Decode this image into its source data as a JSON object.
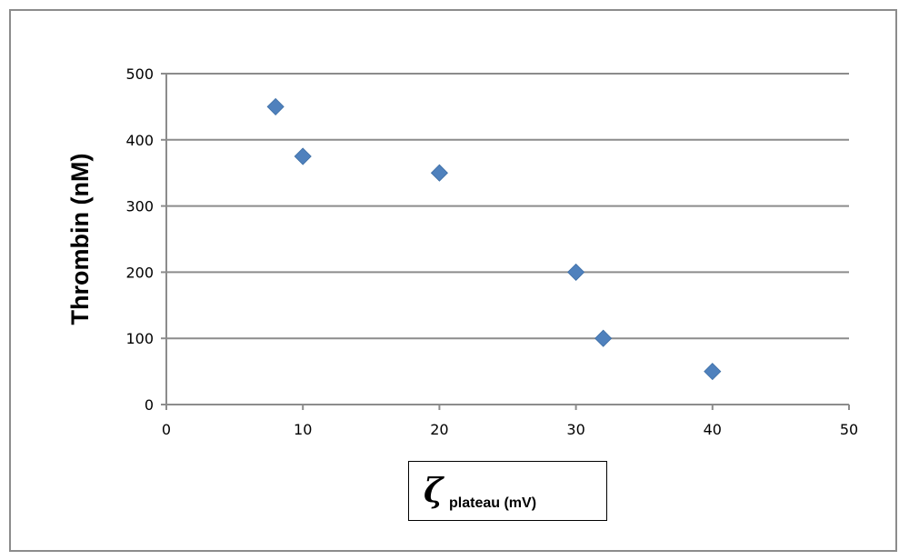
{
  "chart_data": {
    "type": "scatter",
    "title": "",
    "ylabel": "Thrombin (nM)",
    "xlabel_symbol": "ζ",
    "xlabel_sub": "plateau (mV)",
    "xlim": [
      0,
      50
    ],
    "ylim": [
      0,
      500
    ],
    "x_ticks": [
      "0",
      "10",
      "20",
      "30",
      "40",
      "50"
    ],
    "y_ticks": [
      "0",
      "100",
      "200",
      "300",
      "400",
      "500"
    ],
    "grid": "horizontal",
    "marker": "diamond",
    "marker_color": "#4f81bd",
    "series": [
      {
        "points": [
          {
            "x": 8,
            "y": 450
          },
          {
            "x": 10,
            "y": 375
          },
          {
            "x": 20,
            "y": 350
          },
          {
            "x": 30,
            "y": 200
          },
          {
            "x": 32,
            "y": 100
          },
          {
            "x": 40,
            "y": 50
          }
        ]
      }
    ]
  }
}
